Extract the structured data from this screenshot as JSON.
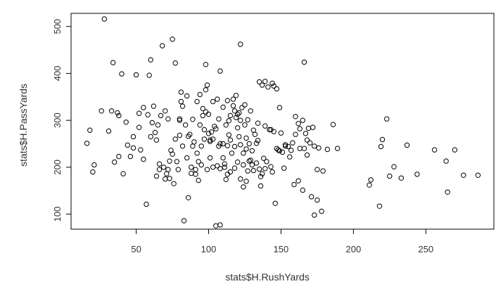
{
  "chart_data": {
    "type": "scatter",
    "xlabel": "stats$H.RushYards",
    "ylabel": "stats$H.PassYards",
    "xlim": [
      5,
      297
    ],
    "ylim": [
      68,
      528
    ],
    "x_ticks": [
      50,
      100,
      150,
      200,
      250
    ],
    "y_ticks": [
      100,
      200,
      300,
      400,
      500
    ],
    "grid": false,
    "point_color": "#000000",
    "points": [
      [
        28,
        516
      ],
      [
        75,
        473
      ],
      [
        68,
        459
      ],
      [
        122,
        462
      ],
      [
        60,
        429
      ],
      [
        34,
        423
      ],
      [
        77,
        422
      ],
      [
        98,
        419
      ],
      [
        108,
        405
      ],
      [
        166,
        424
      ],
      [
        40,
        399
      ],
      [
        50,
        397
      ],
      [
        59,
        396
      ],
      [
        26,
        320
      ],
      [
        33,
        320
      ],
      [
        37,
        316
      ],
      [
        38,
        310
      ],
      [
        43,
        296
      ],
      [
        52,
        315
      ],
      [
        55,
        327
      ],
      [
        62,
        330
      ],
      [
        67,
        310
      ],
      [
        70,
        320
      ],
      [
        72,
        303
      ],
      [
        58,
        312
      ],
      [
        80,
        300
      ],
      [
        81,
        340
      ],
      [
        81,
        360
      ],
      [
        85,
        352
      ],
      [
        92,
        340
      ],
      [
        94,
        355
      ],
      [
        96,
        310
      ],
      [
        100,
        313
      ],
      [
        103,
        340
      ],
      [
        106,
        345
      ],
      [
        110,
        328
      ],
      [
        113,
        342
      ],
      [
        114,
        299
      ],
      [
        117,
        345
      ],
      [
        119,
        353
      ],
      [
        120,
        313
      ],
      [
        122,
        300
      ],
      [
        125,
        333
      ],
      [
        126,
        262
      ],
      [
        131,
        279
      ],
      [
        134,
        294
      ],
      [
        135,
        382
      ],
      [
        137,
        375
      ],
      [
        139,
        383
      ],
      [
        141,
        371
      ],
      [
        144,
        379
      ],
      [
        145,
        373
      ],
      [
        147,
        367
      ],
      [
        149,
        327
      ],
      [
        143,
        280
      ],
      [
        150,
        273
      ],
      [
        153,
        248
      ],
      [
        155,
        244
      ],
      [
        158,
        252
      ],
      [
        160,
        308
      ],
      [
        162,
        293
      ],
      [
        163,
        282
      ],
      [
        165,
        300
      ],
      [
        167,
        272
      ],
      [
        169,
        283
      ],
      [
        170,
        252
      ],
      [
        173,
        245
      ],
      [
        176,
        241
      ],
      [
        179,
        192
      ],
      [
        182,
        238
      ],
      [
        186,
        291
      ],
      [
        189,
        240
      ],
      [
        211,
        162
      ],
      [
        212,
        173
      ],
      [
        218,
        117
      ],
      [
        219,
        244
      ],
      [
        220,
        259
      ],
      [
        223,
        303
      ],
      [
        225,
        181
      ],
      [
        228,
        201
      ],
      [
        233,
        177
      ],
      [
        237,
        247
      ],
      [
        244,
        185
      ],
      [
        256,
        237
      ],
      [
        264,
        213
      ],
      [
        265,
        147
      ],
      [
        270,
        237
      ],
      [
        276,
        183
      ],
      [
        286,
        183
      ],
      [
        16,
        251
      ],
      [
        18,
        279
      ],
      [
        20,
        190
      ],
      [
        21,
        205
      ],
      [
        31,
        277
      ],
      [
        35,
        211
      ],
      [
        38,
        223
      ],
      [
        41,
        186
      ],
      [
        44,
        247
      ],
      [
        46,
        223
      ],
      [
        48,
        241
      ],
      [
        53,
        237
      ],
      [
        55,
        217
      ],
      [
        57,
        121
      ],
      [
        61,
        295
      ],
      [
        64,
        181
      ],
      [
        66,
        195
      ],
      [
        70,
        175
      ],
      [
        72,
        195
      ],
      [
        73,
        213
      ],
      [
        76,
        165
      ],
      [
        79,
        195
      ],
      [
        82,
        245
      ],
      [
        83,
        86
      ],
      [
        86,
        135
      ],
      [
        88,
        187
      ],
      [
        90,
        254
      ],
      [
        95,
        205
      ],
      [
        99,
        195
      ],
      [
        101,
        220
      ],
      [
        103,
        260
      ],
      [
        105,
        75
      ],
      [
        108,
        77
      ],
      [
        108,
        197
      ],
      [
        110,
        220
      ],
      [
        112,
        174
      ],
      [
        114,
        269
      ],
      [
        118,
        198
      ],
      [
        120,
        211
      ],
      [
        122,
        175
      ],
      [
        124,
        158
      ],
      [
        127,
        192
      ],
      [
        128,
        213
      ],
      [
        130,
        235
      ],
      [
        133,
        251
      ],
      [
        136,
        160
      ],
      [
        138,
        219
      ],
      [
        140,
        212
      ],
      [
        143,
        201
      ],
      [
        144,
        190
      ],
      [
        146,
        123
      ],
      [
        148,
        237
      ],
      [
        152,
        198
      ],
      [
        156,
        222
      ],
      [
        159,
        163
      ],
      [
        162,
        171
      ],
      [
        165,
        151
      ],
      [
        168,
        226
      ],
      [
        171,
        137
      ],
      [
        173,
        98
      ],
      [
        175,
        130
      ],
      [
        178,
        106
      ],
      [
        48,
        265
      ],
      [
        52,
        285
      ],
      [
        60,
        265
      ],
      [
        63,
        274
      ],
      [
        65,
        290
      ],
      [
        74,
        236
      ],
      [
        77,
        260
      ],
      [
        80,
        268
      ],
      [
        85,
        220
      ],
      [
        88,
        200
      ],
      [
        91,
        185
      ],
      [
        93,
        172
      ],
      [
        95,
        245
      ],
      [
        97,
        280
      ],
      [
        98,
        318
      ],
      [
        101,
        258
      ],
      [
        105,
        282
      ],
      [
        107,
        245
      ],
      [
        111,
        207
      ],
      [
        112,
        290
      ],
      [
        115,
        258
      ],
      [
        116,
        230
      ],
      [
        118,
        244
      ],
      [
        121,
        265
      ],
      [
        124,
        230
      ],
      [
        126,
        239
      ],
      [
        128,
        250
      ],
      [
        130,
        205
      ],
      [
        132,
        270
      ],
      [
        134,
        257
      ],
      [
        136,
        180
      ],
      [
        139,
        288
      ],
      [
        142,
        280
      ],
      [
        145,
        276
      ],
      [
        147,
        240
      ],
      [
        149,
        235
      ],
      [
        151,
        232
      ],
      [
        153,
        245
      ],
      [
        157,
        236
      ],
      [
        160,
        270
      ],
      [
        163,
        240
      ],
      [
        166,
        240
      ],
      [
        168,
        258
      ],
      [
        172,
        285
      ],
      [
        175,
        195
      ],
      [
        86,
        266
      ],
      [
        89,
        302
      ],
      [
        92,
        230
      ],
      [
        94,
        290
      ],
      [
        97,
        260
      ],
      [
        100,
        272
      ],
      [
        102,
        275
      ],
      [
        104,
        287
      ],
      [
        107,
        303
      ],
      [
        110,
        250
      ],
      [
        113,
        246
      ],
      [
        115,
        310
      ],
      [
        117,
        331
      ],
      [
        119,
        306
      ],
      [
        121,
        316
      ],
      [
        123,
        327
      ],
      [
        125,
        290
      ],
      [
        127,
        301
      ],
      [
        129,
        320
      ],
      [
        64,
        258
      ],
      [
        66,
        207
      ],
      [
        69,
        200
      ],
      [
        71,
        186
      ],
      [
        73,
        176
      ],
      [
        75,
        228
      ],
      [
        78,
        212
      ],
      [
        80,
        303
      ],
      [
        82,
        330
      ],
      [
        84,
        290
      ],
      [
        87,
        270
      ],
      [
        89,
        245
      ],
      [
        91,
        195
      ],
      [
        93,
        212
      ],
      [
        96,
        325
      ],
      [
        98,
        365
      ],
      [
        99,
        375
      ],
      [
        101,
        255
      ],
      [
        103,
        200
      ],
      [
        106,
        203
      ],
      [
        108,
        250
      ],
      [
        111,
        200
      ],
      [
        113,
        185
      ],
      [
        115,
        190
      ],
      [
        118,
        320
      ],
      [
        120,
        284
      ],
      [
        122,
        248
      ],
      [
        124,
        205
      ],
      [
        126,
        170
      ],
      [
        129,
        215
      ],
      [
        131,
        193
      ],
      [
        133,
        209
      ],
      [
        135,
        196
      ],
      [
        137,
        186
      ],
      [
        139,
        197
      ]
    ]
  }
}
